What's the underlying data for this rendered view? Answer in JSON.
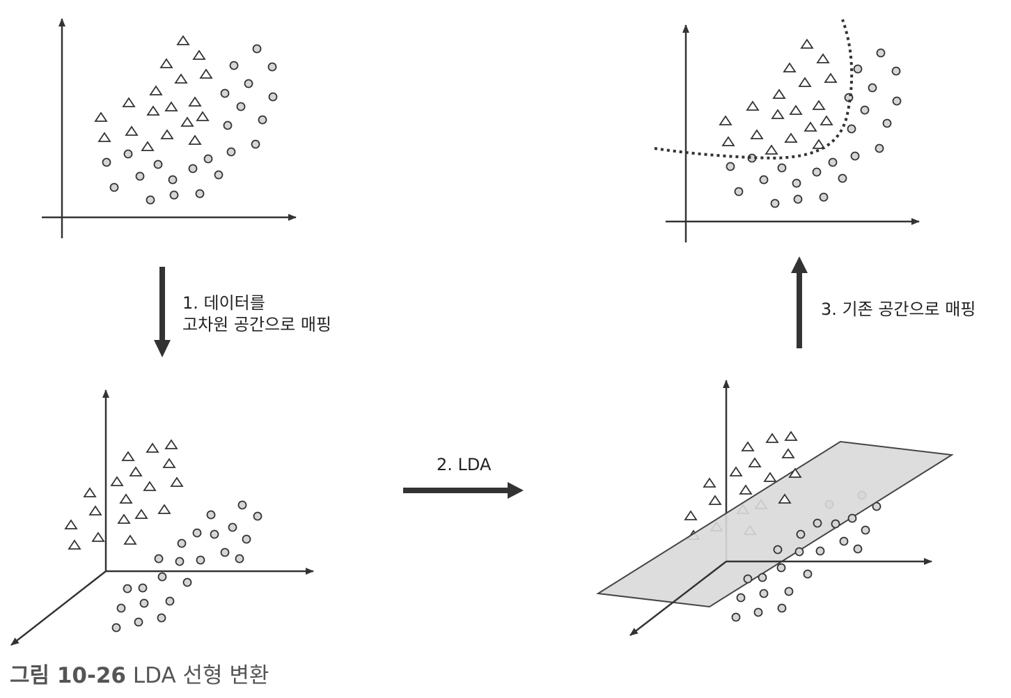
{
  "colors": {
    "ink": "#333333",
    "marker_stroke": "#333333",
    "marker_fill": "#d6d6d6",
    "plane_fill": "#d9d9d9",
    "caption": "#555555"
  },
  "marker_types": [
    "triangle",
    "circle"
  ],
  "steps": {
    "step1": {
      "line1": "1. 데이터를",
      "line2": "고차원 공간으로 매핑"
    },
    "step2": "2. LDA",
    "step3": "3. 기존 공간으로 매핑"
  },
  "caption": {
    "figure_number": "그림 10-26",
    "title": "LDA 선형 변환"
  }
}
